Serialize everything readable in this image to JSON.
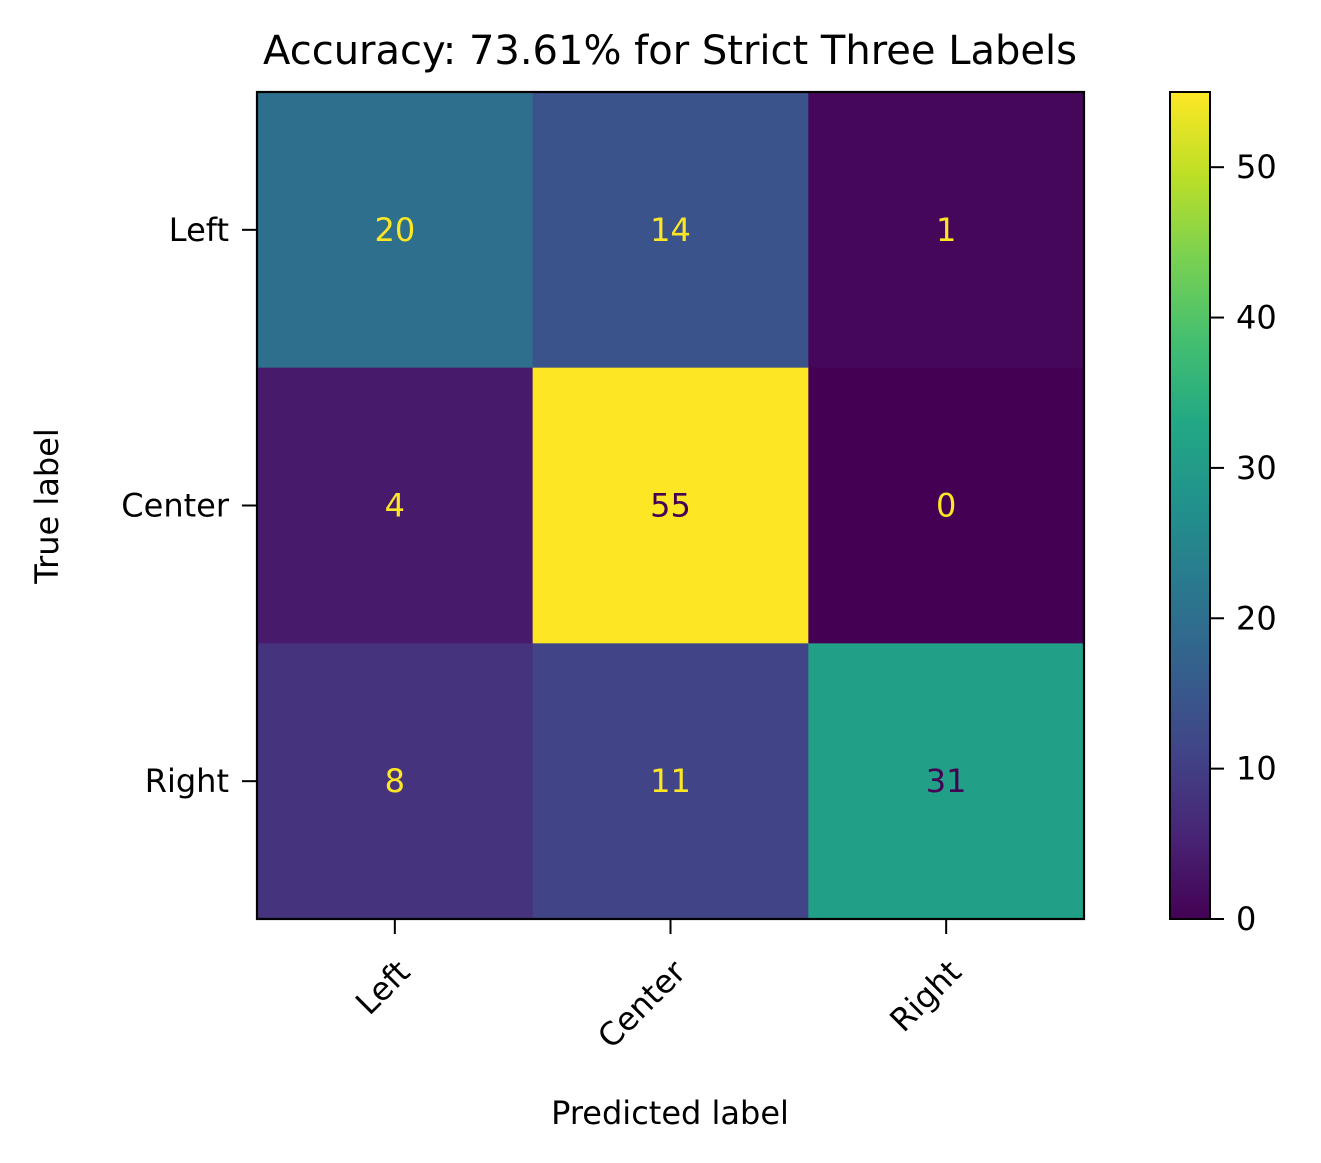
{
  "chart_data": {
    "type": "heatmap",
    "title": "Accuracy: 73.61% for Strict Three Labels",
    "xlabel": "Predicted label",
    "ylabel": "True label",
    "x_categories": [
      "Left",
      "Center",
      "Right"
    ],
    "y_categories": [
      "Left",
      "Center",
      "Right"
    ],
    "values": [
      [
        20,
        14,
        1
      ],
      [
        4,
        55,
        0
      ],
      [
        8,
        11,
        31
      ]
    ],
    "colormap": "viridis",
    "vmin": 0,
    "vmax": 55,
    "colorbar_ticks": [
      0,
      10,
      20,
      30,
      40,
      50
    ],
    "grid": false,
    "light_text_color": "#fde725",
    "dark_text_color": "#440154"
  }
}
